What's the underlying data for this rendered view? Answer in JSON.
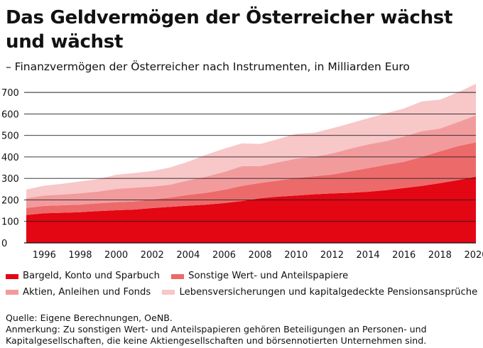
{
  "header": {
    "title": "Das Geldvermögen der Österreicher wächst und wächst",
    "subtitle": "– Finanzvermögen der Österreicher nach Instrumenten, in Milliarden Euro"
  },
  "footer": {
    "source": "Quelle: Eigene Berechnungen, OeNB.",
    "note": "Anmerkung: Zu sonstigen Wert- und Anteilspapieren gehören Beteiligungen an Personen- und Kapitalgesellschaften, die keine Aktiengesellschaften und börsennotierten Unternehmen sind."
  },
  "chart_data": {
    "type": "area",
    "stacked": true,
    "x": [
      1995,
      1996,
      1997,
      1998,
      1999,
      2000,
      2001,
      2002,
      2003,
      2004,
      2005,
      2006,
      2007,
      2008,
      2009,
      2010,
      2011,
      2012,
      2013,
      2014,
      2015,
      2016,
      2017,
      2018,
      2019,
      2020
    ],
    "x_tick_labels": [
      "1996",
      "1998",
      "2000",
      "2002",
      "2004",
      "2006",
      "2008",
      "2010",
      "2012",
      "2014",
      "2016",
      "2018",
      "2020"
    ],
    "x_ticks": [
      1996,
      1998,
      2000,
      2002,
      2004,
      2006,
      2008,
      2010,
      2012,
      2014,
      2016,
      2018,
      2020
    ],
    "ylim": [
      0,
      750
    ],
    "y_ticks": [
      0,
      100,
      200,
      300,
      400,
      500,
      600,
      700
    ],
    "grid": "horizontal",
    "legend_position": "bottom",
    "series": [
      {
        "name": "Bargeld, Konto und Sparbuch",
        "color": "#e30613",
        "values": [
          130,
          138,
          140,
          143,
          148,
          152,
          155,
          162,
          168,
          173,
          178,
          185,
          195,
          207,
          215,
          220,
          226,
          230,
          233,
          238,
          245,
          255,
          265,
          278,
          292,
          308
        ]
      },
      {
        "name": "Sonstige Wert- und Anteilspapiere",
        "color": "#ec6a6a",
        "values": [
          33,
          34,
          35,
          35,
          36,
          37,
          38,
          40,
          43,
          50,
          55,
          62,
          70,
          72,
          75,
          82,
          84,
          88,
          100,
          110,
          118,
          122,
          135,
          148,
          158,
          160
        ]
      },
      {
        "name": "Aktien, Anleihen und Fonds",
        "color": "#f29b9d",
        "values": [
          45,
          48,
          50,
          53,
          55,
          62,
          64,
          60,
          60,
          68,
          75,
          83,
          92,
          78,
          85,
          90,
          90,
          98,
          105,
          110,
          110,
          118,
          120,
          106,
          112,
          125
        ]
      },
      {
        "name": "Lebensversicherungen und kapitalgedeckte Pensionsansprüche",
        "color": "#f8c7c8",
        "values": [
          40,
          46,
          50,
          55,
          58,
          66,
          68,
          72,
          80,
          87,
          102,
          108,
          106,
          103,
          108,
          115,
          112,
          117,
          118,
          122,
          130,
          130,
          138,
          134,
          138,
          147
        ]
      }
    ]
  }
}
